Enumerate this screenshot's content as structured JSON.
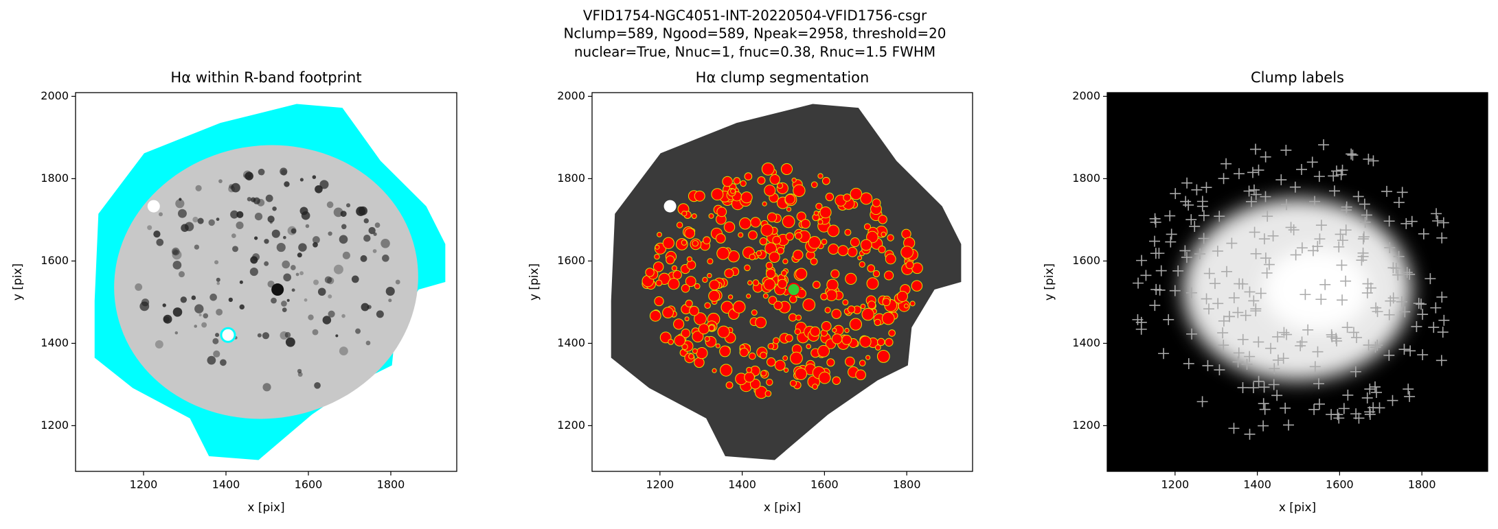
{
  "suptitle": [
    "VFID1754-NGC4051-INT-20220504-VFID1756-csgr",
    "Nclump=589, Ngood=589, Npeak=2958, threshold=20",
    "nuclear=True, Nnuc=1, fnuc=0.38, Rnuc=1.5 FWHM"
  ],
  "chart_data": [
    {
      "type": "image",
      "title": "Hα within R-band footprint",
      "xlabel": "x [pix]",
      "ylabel": "y [pix]",
      "xlim": [
        1035,
        1960
      ],
      "ylim": [
        1089,
        2009
      ],
      "xticks": [
        1200,
        1400,
        1600,
        1800
      ],
      "yticks": [
        1200,
        1400,
        1600,
        1800,
        2000
      ]
    },
    {
      "type": "image",
      "title": "Hα clump segmentation",
      "xlabel": "x [pix]",
      "ylabel": "y [pix]",
      "xlim": [
        1035,
        1960
      ],
      "ylim": [
        1089,
        2009
      ],
      "xticks": [
        1200,
        1400,
        1600,
        1800
      ],
      "yticks": [
        1200,
        1400,
        1600,
        1800,
        2000
      ]
    },
    {
      "type": "image",
      "title": "Clump labels",
      "xlabel": "x [pix]",
      "ylabel": "y [pix]",
      "xlim": [
        1035,
        1960
      ],
      "ylim": [
        1089,
        2009
      ],
      "xticks": [
        1200,
        1400,
        1600,
        1800
      ],
      "yticks": [
        1200,
        1400,
        1600,
        1800,
        2000
      ]
    }
  ]
}
